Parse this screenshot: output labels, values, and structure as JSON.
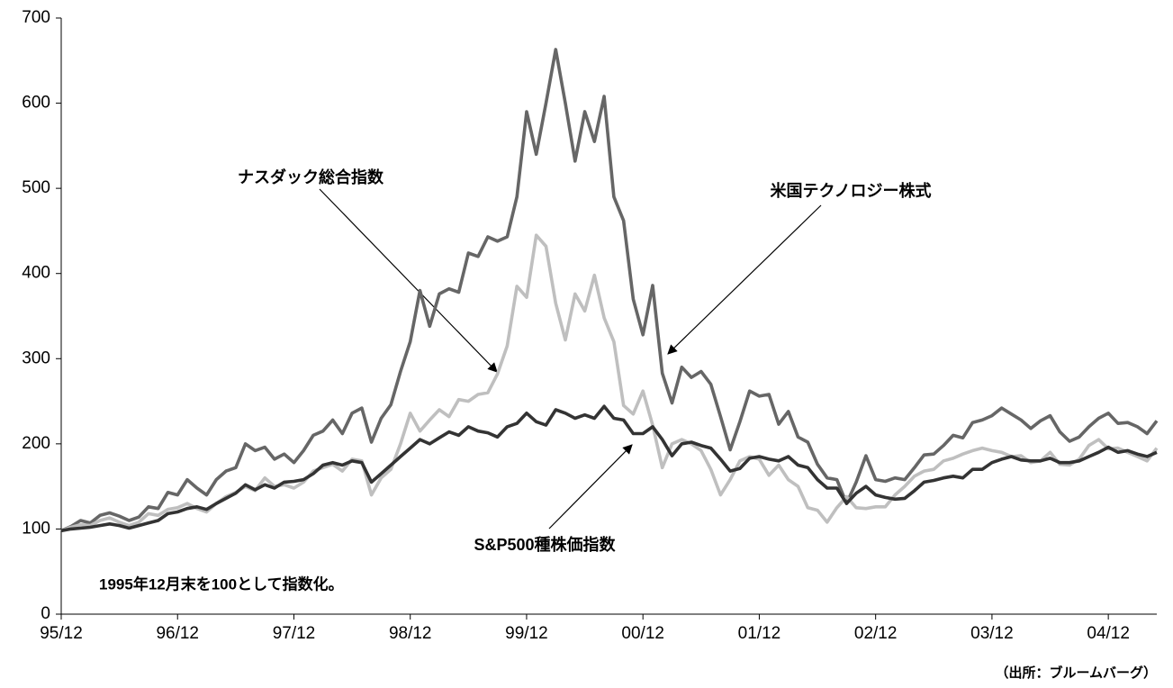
{
  "chart_data": {
    "type": "line",
    "categories": [
      "95/12",
      null,
      null,
      null,
      null,
      null,
      null,
      null,
      null,
      null,
      null,
      null,
      "96/12",
      null,
      null,
      null,
      null,
      null,
      null,
      null,
      null,
      null,
      null,
      null,
      "97/12",
      null,
      null,
      null,
      null,
      null,
      null,
      null,
      null,
      null,
      null,
      null,
      "98/12",
      null,
      null,
      null,
      null,
      null,
      null,
      null,
      null,
      null,
      null,
      null,
      "99/12",
      null,
      null,
      null,
      null,
      null,
      null,
      null,
      null,
      null,
      null,
      null,
      "00/12",
      null,
      null,
      null,
      null,
      null,
      null,
      null,
      null,
      null,
      null,
      null,
      "01/12",
      null,
      null,
      null,
      null,
      null,
      null,
      null,
      null,
      null,
      null,
      null,
      "02/12",
      null,
      null,
      null,
      null,
      null,
      null,
      null,
      null,
      null,
      null,
      null,
      "03/12",
      null,
      null,
      null,
      null,
      null,
      null,
      null,
      null,
      null,
      null,
      null,
      "04/12",
      null,
      null,
      null,
      null,
      null
    ],
    "series": [
      {
        "name": "米国テクノロジー株式",
        "color": "#666666",
        "values": [
          98,
          103,
          110,
          107,
          116,
          119,
          115,
          110,
          114,
          126,
          124,
          143,
          140,
          158,
          148,
          140,
          158,
          168,
          172,
          200,
          192,
          196,
          182,
          188,
          178,
          192,
          210,
          215,
          228,
          212,
          236,
          242,
          202,
          230,
          246,
          285,
          320,
          380,
          338,
          376,
          382,
          378,
          424,
          420,
          443,
          438,
          443,
          490,
          590,
          540,
          600,
          663,
          600,
          532,
          590,
          555,
          608,
          490,
          462,
          370,
          328,
          386,
          283,
          248,
          290,
          278,
          285,
          270,
          232,
          193,
          226,
          262,
          256,
          258,
          223,
          238,
          208,
          202,
          176,
          160,
          158,
          130,
          155,
          186,
          158,
          156,
          160,
          158,
          172,
          187,
          188,
          198,
          210,
          207,
          225,
          228,
          233,
          242,
          235,
          228,
          218,
          227,
          233,
          214,
          203,
          208,
          220,
          230,
          236,
          224,
          225,
          220,
          212,
          227
        ]
      },
      {
        "name": "ナスダック総合指数",
        "color": "#bfbfbf",
        "values": [
          98,
          102,
          105,
          104,
          110,
          113,
          108,
          104,
          108,
          118,
          116,
          123,
          125,
          130,
          124,
          120,
          130,
          138,
          143,
          150,
          145,
          160,
          150,
          152,
          148,
          155,
          168,
          172,
          176,
          168,
          182,
          180,
          140,
          160,
          170,
          200,
          236,
          215,
          228,
          240,
          232,
          252,
          250,
          258,
          260,
          282,
          315,
          385,
          372,
          445,
          432,
          365,
          322,
          376,
          356,
          398,
          348,
          320,
          245,
          235,
          262,
          222,
          172,
          200,
          205,
          200,
          192,
          170,
          140,
          158,
          180,
          185,
          182,
          163,
          175,
          158,
          150,
          125,
          122,
          108,
          125,
          138,
          125,
          124,
          126,
          126,
          140,
          150,
          162,
          168,
          170,
          180,
          183,
          188,
          192,
          195,
          192,
          190,
          185,
          186,
          178,
          180,
          190,
          176,
          175,
          182,
          198,
          205,
          194,
          195,
          190,
          185,
          180,
          195
        ]
      },
      {
        "name": "S&P500種株価指数",
        "color": "#333333",
        "values": [
          98,
          100,
          101,
          102,
          104,
          106,
          104,
          101,
          104,
          107,
          110,
          118,
          120,
          124,
          126,
          123,
          130,
          136,
          142,
          152,
          146,
          152,
          148,
          155,
          156,
          158,
          165,
          175,
          178,
          175,
          180,
          178,
          155,
          165,
          175,
          185,
          195,
          205,
          200,
          207,
          214,
          210,
          220,
          215,
          213,
          208,
          220,
          224,
          236,
          226,
          222,
          240,
          236,
          230,
          234,
          230,
          244,
          230,
          228,
          212,
          212,
          220,
          205,
          186,
          200,
          202,
          198,
          195,
          182,
          168,
          171,
          183,
          185,
          182,
          180,
          185,
          175,
          172,
          158,
          148,
          148,
          130,
          142,
          150,
          140,
          137,
          135,
          136,
          145,
          155,
          157,
          160,
          162,
          160,
          170,
          170,
          178,
          182,
          185,
          181,
          180,
          180,
          183,
          178,
          178,
          180,
          185,
          190,
          196,
          190,
          192,
          188,
          185,
          190
        ]
      }
    ],
    "ylim": [
      0,
      700
    ],
    "yticks": [
      0,
      100,
      200,
      300,
      400,
      500,
      600,
      700
    ],
    "note": "1995年12月末を100として指数化。",
    "source": "（出所：ブルームバーグ）"
  }
}
